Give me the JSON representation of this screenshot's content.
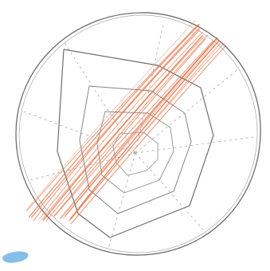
{
  "drawing": {
    "description_kind": "hand-drawn pencil sketch",
    "colors": {
      "paper": "#ffffff",
      "pencil": "#6e6e6e",
      "pencil_light": "#a9a9a9",
      "hatch": "#e0683a",
      "hatch_light": "#f08a60",
      "blue_mark": "#6aaee0"
    },
    "elements": [
      "outer-circle",
      "spiderweb-polygons",
      "radial-spokes",
      "orange-hatched-band",
      "blue-mark"
    ],
    "web_rings": 4,
    "hatch_stroke_count": 18
  }
}
